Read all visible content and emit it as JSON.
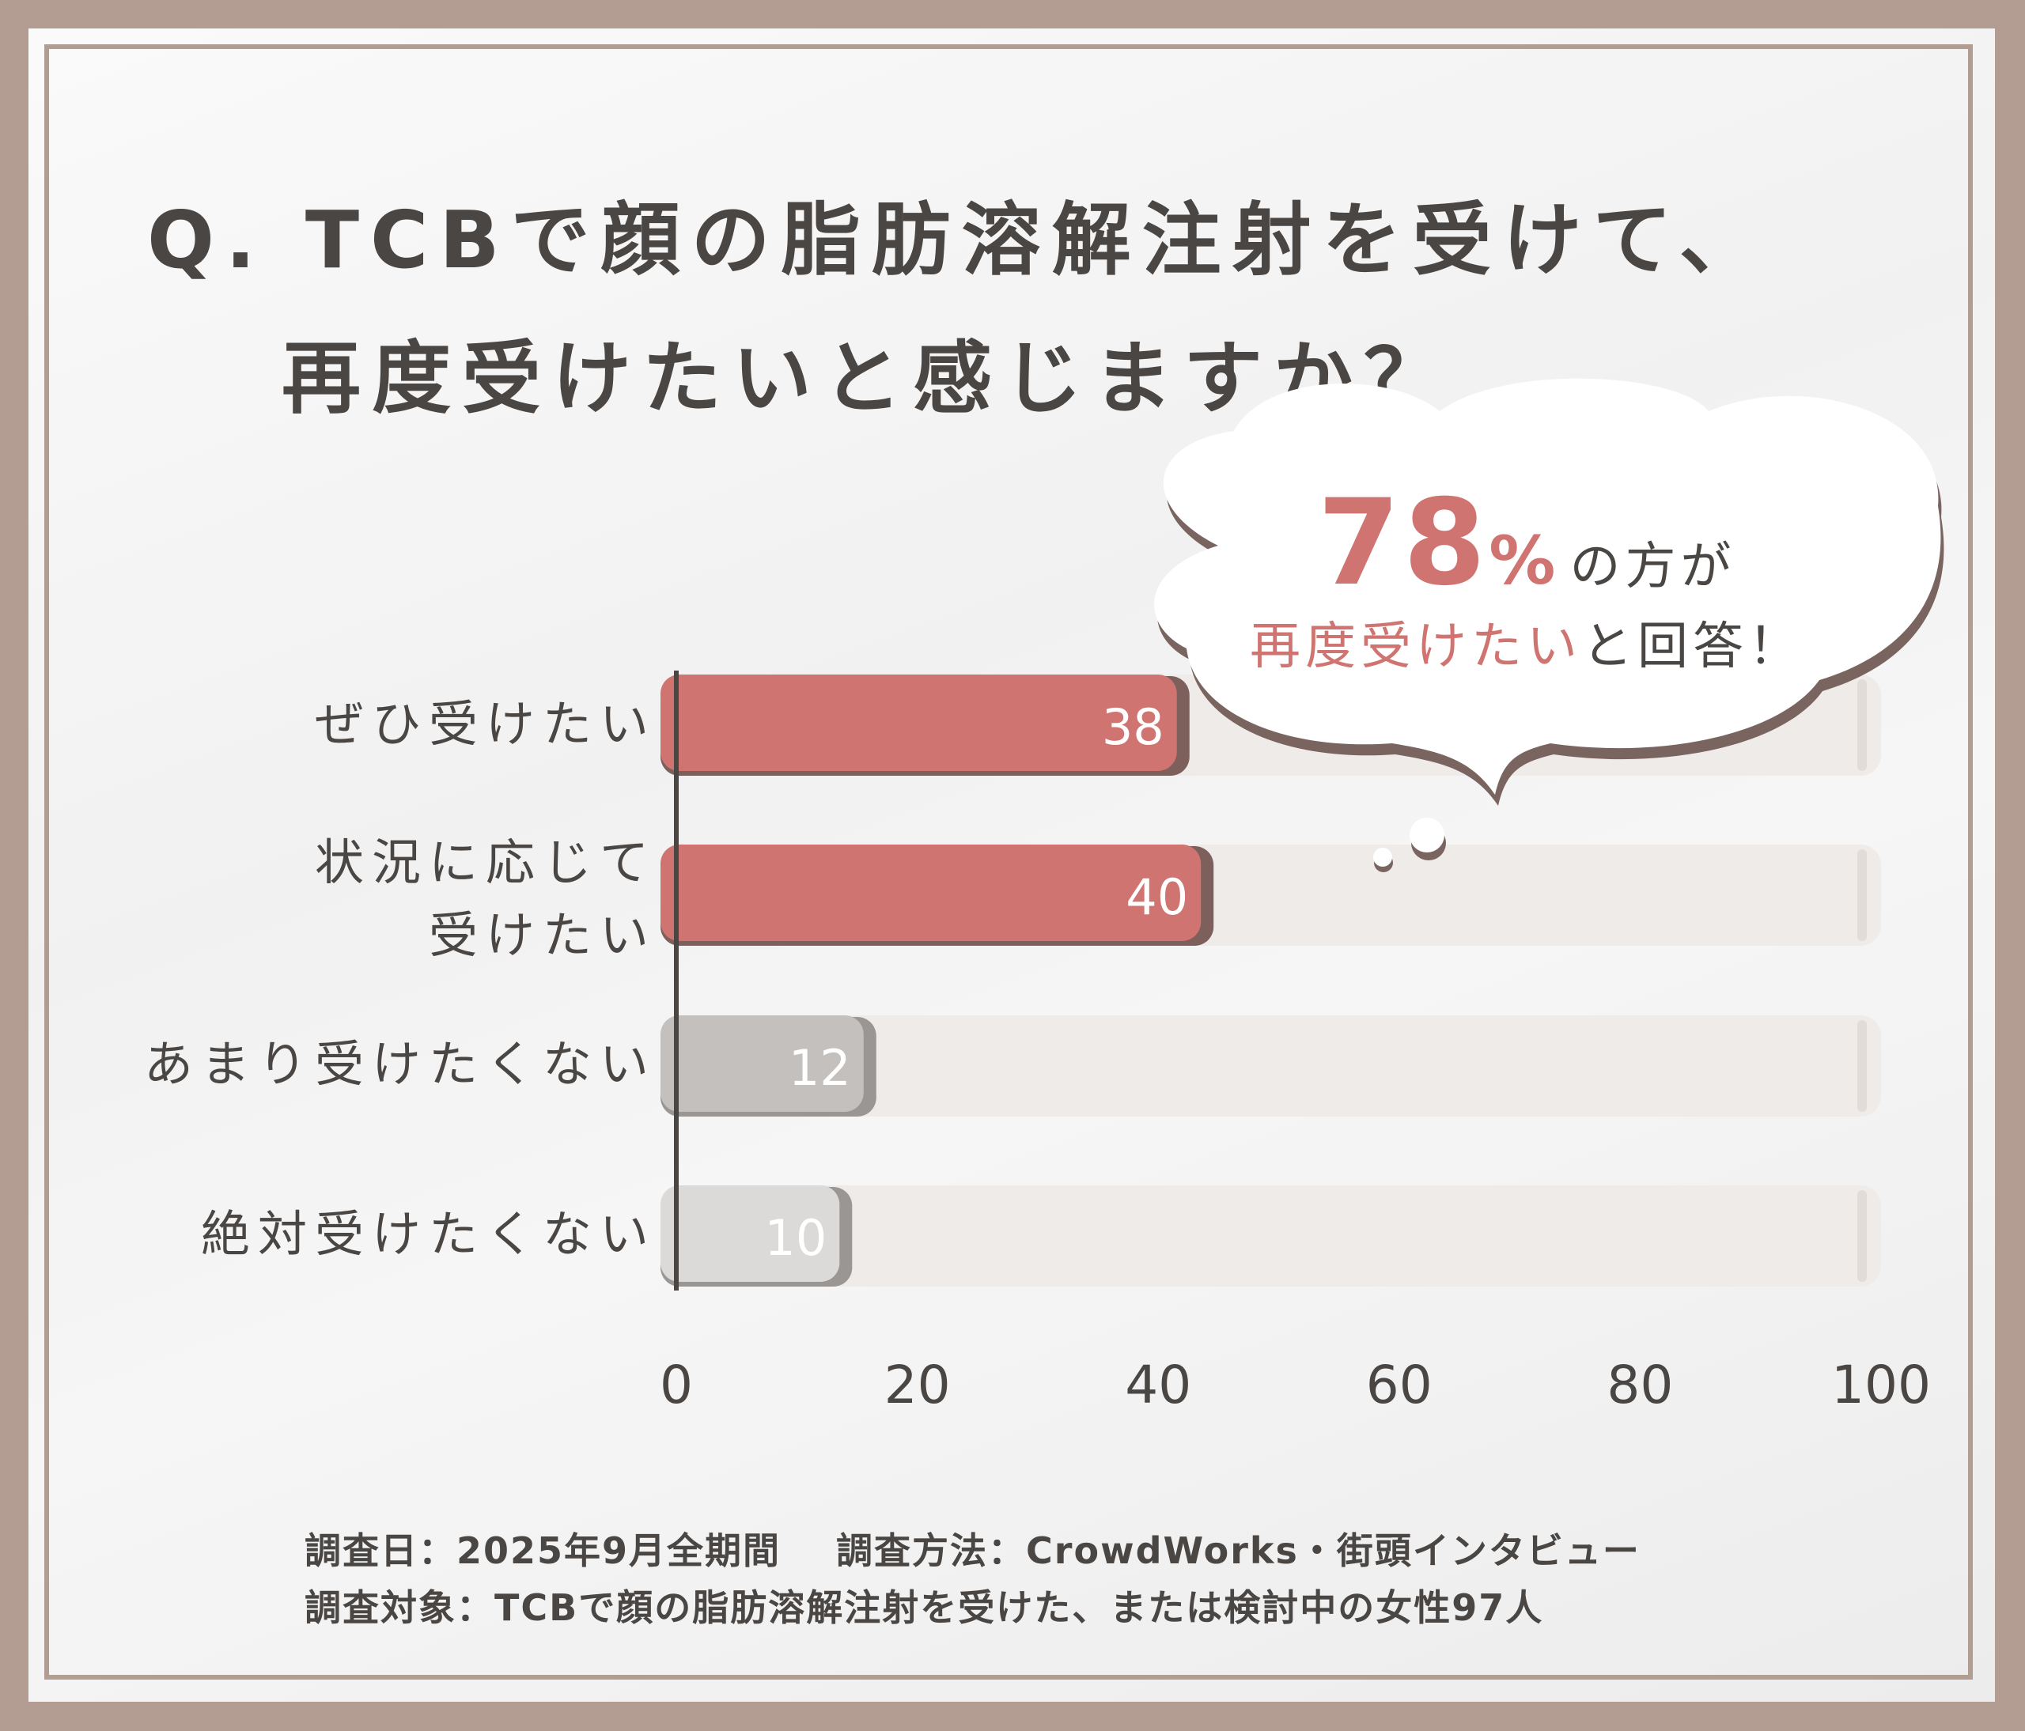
{
  "title": {
    "line1": "Q. TCBで顔の脂肪溶解注射を受けて、",
    "line2": "再度受けたいと感じますか？"
  },
  "callout": {
    "percent": "78",
    "percent_sign": "%",
    "line1_suffix": "の方が",
    "line2_highlight": "再度受けたい",
    "line2_rest": "と回答！"
  },
  "chart_data": {
    "type": "bar",
    "orientation": "horizontal",
    "categories": [
      "ぜひ受けたい",
      "状況に応じて\n受けたい",
      "あまり受けたくない",
      "絶対受けたくない"
    ],
    "values": [
      38,
      40,
      12,
      10
    ],
    "bar_colors": [
      "#cf7470",
      "#cf7470",
      "#c3c0bd",
      "#dcdad8"
    ],
    "track_color": "#efebe9",
    "xlim": [
      0,
      100
    ],
    "xticks": [
      "0",
      "20",
      "40",
      "60",
      "80",
      "100"
    ],
    "grid": false
  },
  "footer": {
    "date": "調査日：2025年9月全期間",
    "method": "調査方法：CrowdWorks・街頭インタビュー",
    "target": "調査対象：TCBで顔の脂肪溶解注射を受けた、または検討中の女性97人"
  },
  "colors": {
    "frame": "#b39c92",
    "accent": "#cf7470",
    "text": "#4a4644"
  }
}
